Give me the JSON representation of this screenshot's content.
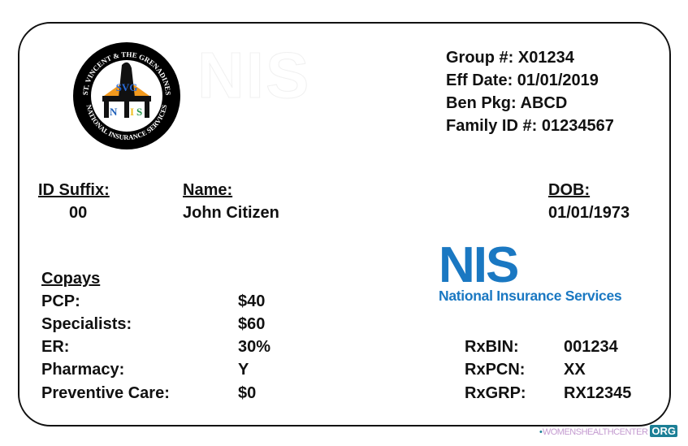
{
  "logo": {
    "top_text": "ST. VINCENT & THE GRENADINES",
    "bottom_text": "NATIONAL INSURANCE SERVICES",
    "center_top": "SVG",
    "center_letters": [
      "N",
      "I",
      "S"
    ]
  },
  "watermark": "NIS",
  "header": [
    {
      "label": "Group #:",
      "value": "X01234"
    },
    {
      "label": "Eff Date:",
      "value": "01/01/2019"
    },
    {
      "label": "Ben Pkg:",
      "value": "ABCD"
    },
    {
      "label": "Family ID #:",
      "value": "01234567"
    }
  ],
  "member": {
    "id_suffix_label": "ID Suffix:",
    "id_suffix": "00",
    "name_label": "Name:",
    "name": "John Citizen",
    "dob_label": "DOB:",
    "dob": "01/01/1973"
  },
  "copays": {
    "title": "Copays",
    "rows": [
      {
        "label": "PCP:",
        "value": "$40"
      },
      {
        "label": "Specialists:",
        "value": "$60"
      },
      {
        "label": "ER:",
        "value": "30%"
      },
      {
        "label": "Pharmacy:",
        "value": "Y"
      },
      {
        "label": "Preventive Care:",
        "value": "$0"
      }
    ]
  },
  "brand": {
    "short": "NIS",
    "full": "National Insurance Services",
    "color": "#1a78c2"
  },
  "rx": [
    {
      "label": "RxBIN:",
      "value": "001234"
    },
    {
      "label": "RxPCN:",
      "value": "XX"
    },
    {
      "label": "RxGRP:",
      "value": "RX12345"
    }
  ],
  "footer": {
    "site": "WOMENSHEALTHCENTER",
    "tld": "ORG"
  }
}
